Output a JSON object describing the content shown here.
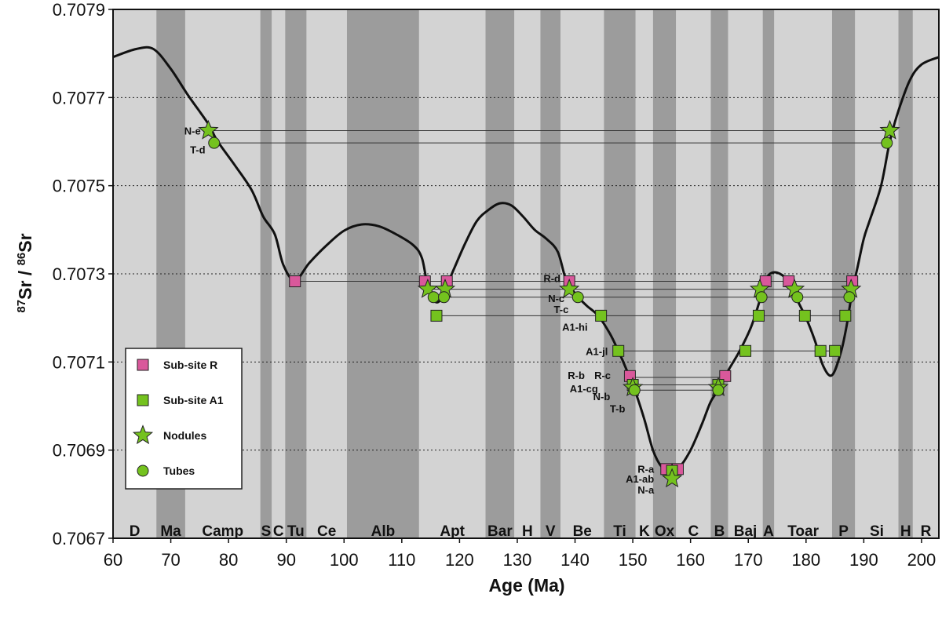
{
  "chart_data": {
    "type": "line",
    "title": "",
    "xlabel": "Age (Ma)",
    "ylabel": {
      "sup1": "87",
      "part1": "Sr / ",
      "sup2": "86",
      "part2": "Sr"
    },
    "xlim": [
      60,
      203
    ],
    "ylim": [
      0.7067,
      0.7079
    ],
    "xticks": [
      60,
      70,
      80,
      90,
      100,
      110,
      120,
      130,
      140,
      150,
      160,
      170,
      180,
      190,
      200
    ],
    "yticks": [
      {
        "value": 0.7067,
        "label": "0.7067"
      },
      {
        "value": 0.7069,
        "label": "0.7069"
      },
      {
        "value": 0.7071,
        "label": "0.7071"
      },
      {
        "value": 0.7073,
        "label": "0.7073"
      },
      {
        "value": 0.7075,
        "label": "0.7075"
      },
      {
        "value": 0.7077,
        "label": "0.7077"
      },
      {
        "value": 0.7079,
        "label": "0.7079"
      }
    ],
    "grid": "horizontal dotted",
    "legend_position": "lower-left",
    "colors": {
      "sub_site_r": "#d9589b",
      "sub_site_a1": "#74c21e",
      "band_light": "#d3d3d3",
      "band_dark": "#9c9c9c",
      "curve": "#111111"
    },
    "stages": [
      {
        "label": "D",
        "from": 60,
        "to": 67.5,
        "shade": "light"
      },
      {
        "label": "Ma",
        "from": 67.5,
        "to": 72.5,
        "shade": "dark"
      },
      {
        "label": "Camp",
        "from": 72.5,
        "to": 85.5,
        "shade": "light"
      },
      {
        "label": "S",
        "from": 85.5,
        "to": 87.5,
        "shade": "dark"
      },
      {
        "label": "C",
        "from": 87.5,
        "to": 89.8,
        "shade": "light"
      },
      {
        "label": "Tu",
        "from": 89.8,
        "to": 93.5,
        "shade": "dark"
      },
      {
        "label": "Ce",
        "from": 93.5,
        "to": 100.5,
        "shade": "light"
      },
      {
        "label": "Alb",
        "from": 100.5,
        "to": 113.0,
        "shade": "dark"
      },
      {
        "label": "Apt",
        "from": 113.0,
        "to": 124.5,
        "shade": "light"
      },
      {
        "label": "Bar",
        "from": 124.5,
        "to": 129.5,
        "shade": "dark"
      },
      {
        "label": "H",
        "from": 129.5,
        "to": 134.0,
        "shade": "light"
      },
      {
        "label": "V",
        "from": 134.0,
        "to": 137.5,
        "shade": "dark"
      },
      {
        "label": "Be",
        "from": 137.5,
        "to": 145.0,
        "shade": "light"
      },
      {
        "label": "Ti",
        "from": 145.0,
        "to": 150.5,
        "shade": "dark"
      },
      {
        "label": "K",
        "from": 150.5,
        "to": 153.5,
        "shade": "light"
      },
      {
        "label": "Ox",
        "from": 153.5,
        "to": 157.5,
        "shade": "dark"
      },
      {
        "label": "C",
        "from": 157.5,
        "to": 163.5,
        "shade": "light"
      },
      {
        "label": "B",
        "from": 163.5,
        "to": 166.5,
        "shade": "dark"
      },
      {
        "label": "Baj",
        "from": 166.5,
        "to": 172.5,
        "shade": "light"
      },
      {
        "label": "A",
        "from": 172.5,
        "to": 174.5,
        "shade": "dark"
      },
      {
        "label": "Toar",
        "from": 174.5,
        "to": 184.5,
        "shade": "light"
      },
      {
        "label": "P",
        "from": 184.5,
        "to": 188.5,
        "shade": "dark"
      },
      {
        "label": "Si",
        "from": 188.5,
        "to": 196.0,
        "shade": "light"
      },
      {
        "label": "H",
        "from": 196.0,
        "to": 198.5,
        "shade": "dark"
      },
      {
        "label": "R",
        "from": 198.5,
        "to": 203.0,
        "shade": "light"
      }
    ],
    "curve": [
      [
        60,
        0.707792
      ],
      [
        64,
        0.70781
      ],
      [
        67,
        0.70781
      ],
      [
        70,
        0.707765
      ],
      [
        73,
        0.707705
      ],
      [
        76.5,
        0.70764
      ],
      [
        78,
        0.707603
      ],
      [
        81,
        0.707548
      ],
      [
        84,
        0.70749
      ],
      [
        86,
        0.70743
      ],
      [
        88,
        0.70739
      ],
      [
        89.5,
        0.70732
      ],
      [
        91.5,
        0.707285
      ],
      [
        94,
        0.707325
      ],
      [
        97,
        0.707365
      ],
      [
        100,
        0.707398
      ],
      [
        103,
        0.707412
      ],
      [
        106,
        0.707408
      ],
      [
        109,
        0.70739
      ],
      [
        112,
        0.707365
      ],
      [
        113.5,
        0.707335
      ],
      [
        114.5,
        0.70727
      ],
      [
        115.5,
        0.70724
      ],
      [
        116.5,
        0.707238
      ],
      [
        117.5,
        0.707265
      ],
      [
        119,
        0.70731
      ],
      [
        121,
        0.70737
      ],
      [
        123,
        0.70742
      ],
      [
        125,
        0.707445
      ],
      [
        127,
        0.70746
      ],
      [
        129,
        0.707455
      ],
      [
        131,
        0.70743
      ],
      [
        133,
        0.7074
      ],
      [
        135,
        0.70738
      ],
      [
        137,
        0.70735
      ],
      [
        138.5,
        0.707285
      ],
      [
        140.5,
        0.707248
      ],
      [
        142,
        0.707228
      ],
      [
        144,
        0.707205
      ],
      [
        146,
        0.707165
      ],
      [
        147.5,
        0.707125
      ],
      [
        149,
        0.70708
      ],
      [
        150.5,
        0.70703
      ],
      [
        152,
        0.70697
      ],
      [
        153.5,
        0.7069
      ],
      [
        155,
        0.706862
      ],
      [
        156.5,
        0.706852
      ],
      [
        158,
        0.70686
      ],
      [
        160,
        0.7069
      ],
      [
        162,
        0.70696
      ],
      [
        163.5,
        0.70701
      ],
      [
        165,
        0.70704
      ],
      [
        166.5,
        0.70708
      ],
      [
        168.5,
        0.707125
      ],
      [
        170.5,
        0.70718
      ],
      [
        172,
        0.70724
      ],
      [
        173,
        0.707285
      ],
      [
        174,
        0.707302
      ],
      [
        175.5,
        0.7073
      ],
      [
        177,
        0.707282
      ],
      [
        178.5,
        0.70724
      ],
      [
        180,
        0.7072
      ],
      [
        181.5,
        0.70715
      ],
      [
        183,
        0.70709
      ],
      [
        184.5,
        0.70707
      ],
      [
        186,
        0.70712
      ],
      [
        187,
        0.70718
      ],
      [
        188,
        0.70726
      ],
      [
        189,
        0.70732
      ],
      [
        190,
        0.70738
      ],
      [
        191,
        0.70742
      ],
      [
        193,
        0.7075
      ],
      [
        194.5,
        0.7076
      ],
      [
        196,
        0.70767
      ],
      [
        198,
        0.70774
      ],
      [
        200,
        0.707775
      ],
      [
        203,
        0.707792
      ]
    ],
    "tie_lines": [
      {
        "y": 0.707625,
        "from": 76.5,
        "to": 194.5
      },
      {
        "y": 0.707597,
        "from": 77.5,
        "to": 194.0
      },
      {
        "y": 0.707283,
        "from": 91.5,
        "to": 188.0
      },
      {
        "y": 0.707283,
        "from": 114.0,
        "to": 188.0
      },
      {
        "y": 0.707265,
        "from": 114.5,
        "to": 188.0
      },
      {
        "y": 0.707247,
        "from": 115.5,
        "to": 187.5
      },
      {
        "y": 0.707205,
        "from": 116.0,
        "to": 186.5
      },
      {
        "y": 0.707125,
        "from": 147.5,
        "to": 185.0
      },
      {
        "y": 0.707065,
        "from": 149.5,
        "to": 166.0
      },
      {
        "y": 0.707048,
        "from": 149.8,
        "to": 165.0
      },
      {
        "y": 0.707036,
        "from": 150.3,
        "to": 164.8
      }
    ],
    "series": [
      {
        "name": "Sub-site R",
        "marker": "square",
        "points": [
          [
            91.5,
            0.707283
          ],
          [
            114.0,
            0.707283
          ],
          [
            117.8,
            0.707283
          ],
          [
            139.0,
            0.707283
          ],
          [
            149.5,
            0.707068
          ],
          [
            166.0,
            0.707068
          ],
          [
            155.8,
            0.706857
          ],
          [
            157.8,
            0.706857
          ],
          [
            173.0,
            0.707283
          ],
          [
            177.0,
            0.707283
          ],
          [
            188.0,
            0.707283
          ]
        ]
      },
      {
        "name": "Sub-site A1",
        "marker": "square",
        "points": [
          [
            116.0,
            0.707205
          ],
          [
            144.5,
            0.707205
          ],
          [
            147.5,
            0.707125
          ],
          [
            150.0,
            0.707048
          ],
          [
            164.8,
            0.707048
          ],
          [
            156.8,
            0.706853
          ],
          [
            169.5,
            0.707125
          ],
          [
            171.8,
            0.707205
          ],
          [
            179.8,
            0.707205
          ],
          [
            182.5,
            0.707125
          ],
          [
            185.0,
            0.707125
          ],
          [
            186.8,
            0.707205
          ]
        ]
      },
      {
        "name": "Nodules",
        "marker": "star",
        "points": [
          [
            76.5,
            0.707625
          ],
          [
            114.5,
            0.707265
          ],
          [
            117.5,
            0.707265
          ],
          [
            139.0,
            0.707265
          ],
          [
            150.0,
            0.707042
          ],
          [
            156.8,
            0.706835
          ],
          [
            164.8,
            0.707042
          ],
          [
            172.0,
            0.707265
          ],
          [
            178.0,
            0.707265
          ],
          [
            187.8,
            0.707265
          ],
          [
            194.5,
            0.707625
          ]
        ]
      },
      {
        "name": "Tubes",
        "marker": "circle",
        "points": [
          [
            77.5,
            0.707597
          ],
          [
            115.5,
            0.707247
          ],
          [
            117.3,
            0.707247
          ],
          [
            140.5,
            0.707247
          ],
          [
            150.3,
            0.707036
          ],
          [
            164.8,
            0.707036
          ],
          [
            172.3,
            0.707247
          ],
          [
            178.5,
            0.707247
          ],
          [
            187.5,
            0.707247
          ],
          [
            194.0,
            0.707597
          ]
        ]
      }
    ],
    "annotations": [
      {
        "text": "N-e",
        "x": 76.0,
        "y": 0.707625,
        "side": "left"
      },
      {
        "text": "T-d",
        "x": 76.8,
        "y": 0.707582,
        "side": "left"
      },
      {
        "text": "R-d",
        "x": 138.3,
        "y": 0.70729,
        "side": "left"
      },
      {
        "text": "N-c",
        "x": 139.0,
        "y": 0.707245,
        "side": "left"
      },
      {
        "text": "T-c",
        "x": 139.7,
        "y": 0.70722,
        "side": "left"
      },
      {
        "text": "A1-hi",
        "x": 143.0,
        "y": 0.70718,
        "side": "left"
      },
      {
        "text": "A1-jl",
        "x": 146.5,
        "y": 0.707125,
        "side": "left"
      },
      {
        "text": "R-b",
        "x": 142.5,
        "y": 0.70707,
        "side": "left"
      },
      {
        "text": "R-c",
        "x": 147.0,
        "y": 0.70707,
        "side": "left"
      },
      {
        "text": "A1-cg",
        "x": 144.8,
        "y": 0.70704,
        "side": "left"
      },
      {
        "text": "N-b",
        "x": 146.9,
        "y": 0.707022,
        "side": "left"
      },
      {
        "text": "T-b",
        "x": 149.5,
        "y": 0.706995,
        "side": "left"
      },
      {
        "text": "R-a",
        "x": 154.5,
        "y": 0.706858,
        "side": "left"
      },
      {
        "text": "A1-ab",
        "x": 154.5,
        "y": 0.706835,
        "side": "left"
      },
      {
        "text": "N-a",
        "x": 154.5,
        "y": 0.70681,
        "side": "left"
      }
    ],
    "legend": [
      {
        "label": "Sub-site R",
        "marker": "square",
        "color": "#d9589b"
      },
      {
        "label": "Sub-site A1",
        "marker": "square",
        "color": "#74c21e"
      },
      {
        "label": "Nodules",
        "marker": "star",
        "color": "#74c21e"
      },
      {
        "label": "Tubes",
        "marker": "circle",
        "color": "#74c21e"
      }
    ]
  }
}
